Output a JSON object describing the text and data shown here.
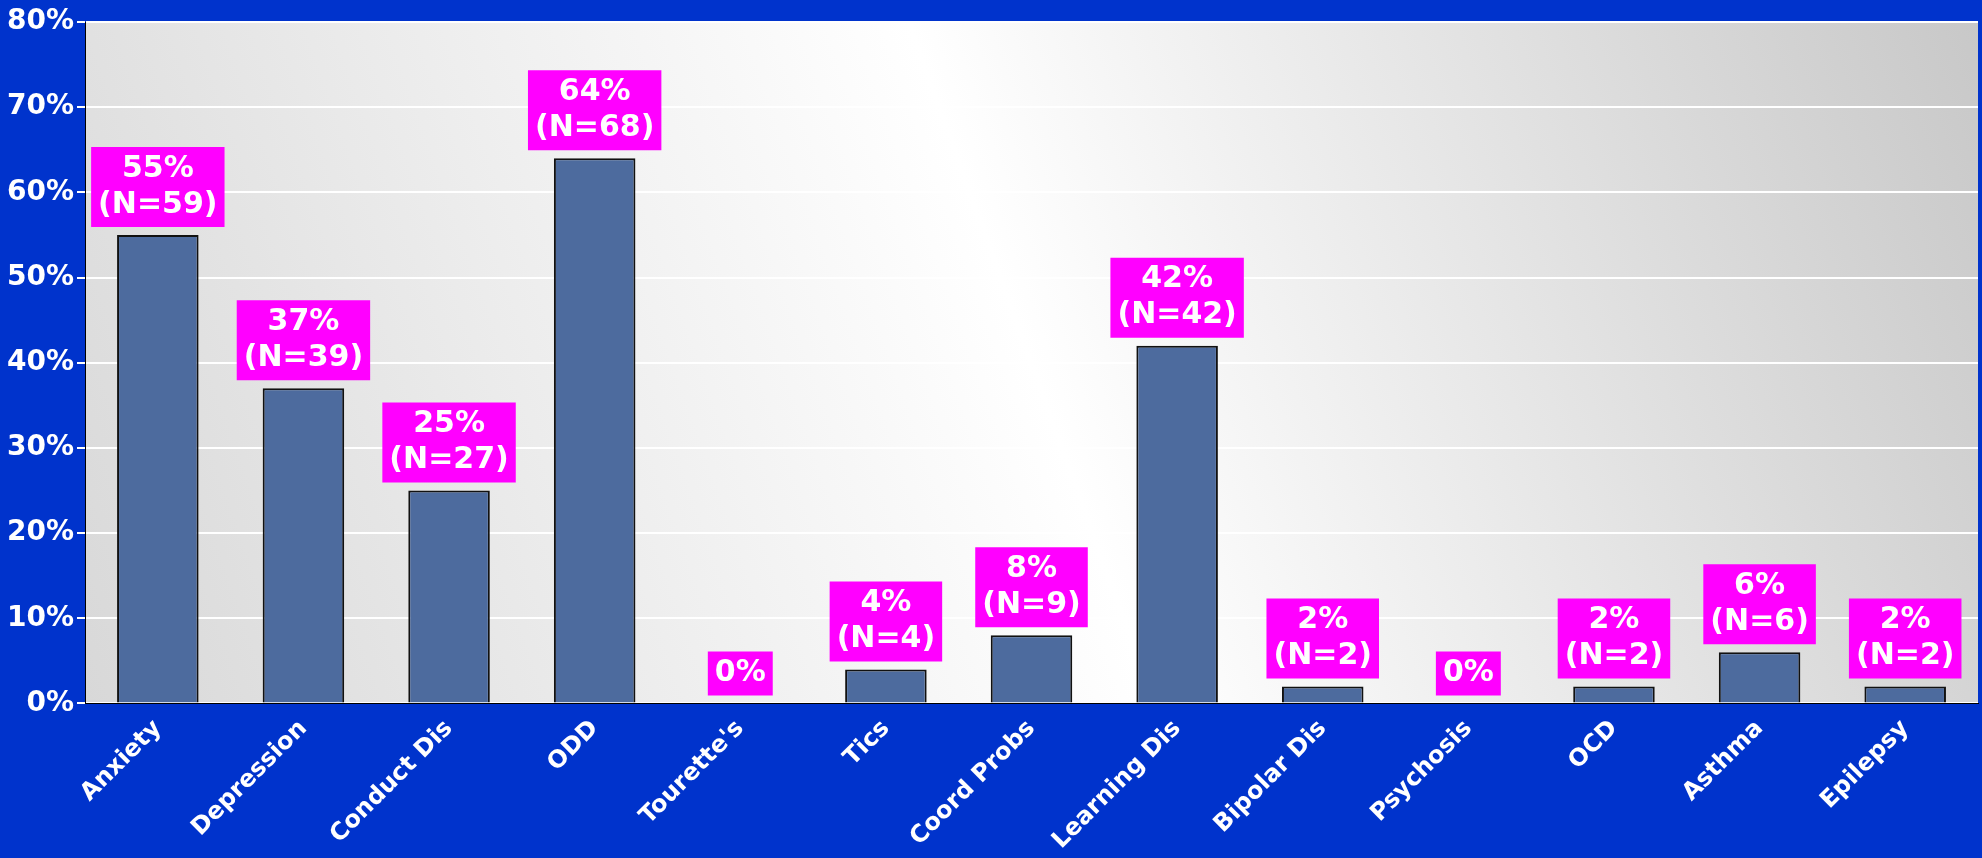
{
  "chart_data": {
    "type": "bar",
    "categories": [
      "Anxiety",
      "Depression",
      "Conduct Dis",
      "ODD",
      "Tourette's",
      "Tics",
      "Coord Probs",
      "Learning Dis",
      "Bipolar Dis",
      "Psychosis",
      "OCD",
      "Asthma",
      "Epilepsy"
    ],
    "values": [
      55,
      37,
      25,
      64,
      0,
      4,
      8,
      42,
      2,
      0,
      2,
      6,
      2
    ],
    "value_labels": [
      "55%\n(N=59)",
      "37%\n(N=39)",
      "25%\n(N=27)",
      "64%\n(N=68)",
      "0%",
      "4%\n(N=4)",
      "8%\n(N=9)",
      "42%\n(N=42)",
      "2%\n(N=2)",
      "0%",
      "2%\n(N=2)",
      "6%\n(N=6)",
      "2%\n(N=2)"
    ],
    "color": "#4d6b9e",
    "ylim": [
      0,
      80
    ],
    "yticks": [
      {
        "value": 0,
        "label": "0%"
      },
      {
        "value": 10,
        "label": "10%"
      },
      {
        "value": 20,
        "label": "20%"
      },
      {
        "value": 30,
        "label": "30%"
      },
      {
        "value": 40,
        "label": "40%"
      },
      {
        "value": 50,
        "label": "50%"
      },
      {
        "value": 60,
        "label": "60%"
      },
      {
        "value": 70,
        "label": "70%"
      },
      {
        "value": 80,
        "label": "80%"
      }
    ],
    "grid": "y",
    "legend": false
  }
}
